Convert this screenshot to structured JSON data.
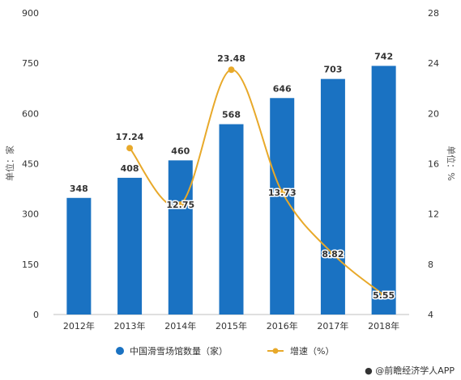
{
  "chart_data": {
    "type": "bar",
    "categories": [
      "2012年",
      "2013年",
      "2014年",
      "2015年",
      "2016年",
      "2017年",
      "2018年"
    ],
    "series": [
      {
        "name": "中国滑雪场馆数量（家）",
        "type": "bar",
        "axis": "left",
        "values": [
          348,
          408,
          460,
          568,
          646,
          703,
          742
        ],
        "labels": [
          "348",
          "408",
          "460",
          "568",
          "646",
          "703",
          "742"
        ],
        "color": "#1a72c2"
      },
      {
        "name": "增速（%）",
        "type": "line",
        "axis": "right",
        "values": [
          null,
          17.24,
          12.75,
          23.48,
          13.73,
          8.82,
          5.55
        ],
        "labels": [
          "",
          "17.24",
          "12.75",
          "23.48",
          "13.73",
          "8.82",
          "5.55"
        ],
        "color": "#e8a92a"
      }
    ],
    "y_left": {
      "label": "单位：家",
      "ticks": [
        "0",
        "150",
        "300",
        "450",
        "600",
        "750",
        "900"
      ],
      "range": [
        0,
        900
      ]
    },
    "y_right": {
      "label": "单位：%",
      "ticks": [
        "4",
        "8",
        "12",
        "16",
        "20",
        "24",
        "28"
      ],
      "range": [
        4,
        28
      ]
    },
    "legend_position": "bottom",
    "grid": false
  },
  "brand": {
    "icon": "user-icon",
    "text": "@前瞻经济学人APP"
  }
}
